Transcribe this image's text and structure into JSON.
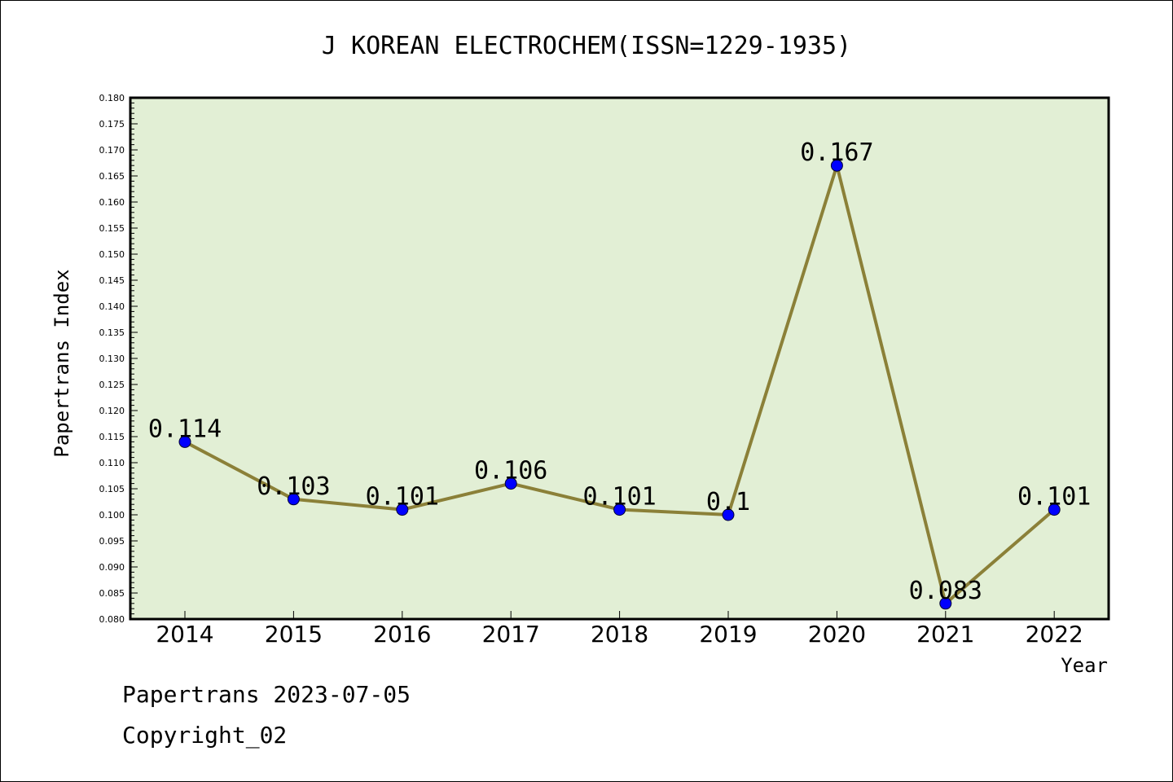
{
  "chart_data": {
    "type": "line",
    "title": "J KOREAN ELECTROCHEM(ISSN=1229-1935)",
    "xlabel": "Year",
    "ylabel": "Papertrans Index",
    "categories": [
      "2014",
      "2015",
      "2016",
      "2017",
      "2018",
      "2019",
      "2020",
      "2021",
      "2022"
    ],
    "series": [
      {
        "values": [
          0.114,
          0.103,
          0.101,
          0.106,
          0.101,
          0.1,
          0.167,
          0.083,
          0.101
        ],
        "data_labels": [
          "0.114",
          "0.103",
          "0.101",
          "0.106",
          "0.101",
          "0.1",
          "0.167",
          "0.083",
          "0.101"
        ]
      }
    ],
    "ylim": [
      0.08,
      0.18
    ],
    "y_ticks": [
      "0.080",
      "0.085",
      "0.090",
      "0.095",
      "0.100",
      "0.105",
      "0.110",
      "0.115",
      "0.120",
      "0.125",
      "0.130",
      "0.135",
      "0.140",
      "0.145",
      "0.150",
      "0.155",
      "0.160",
      "0.165",
      "0.170",
      "0.175",
      "0.180"
    ],
    "grid": false,
    "colors": {
      "plot_background": "#e2efd5",
      "line": "#8b8038",
      "marker": "#0000ff"
    }
  },
  "footer": {
    "line1": "Papertrans 2023-07-05",
    "line2": "Copyright_02"
  }
}
